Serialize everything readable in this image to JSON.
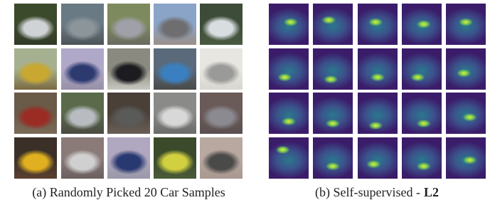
{
  "panels": [
    {
      "caption": "(a) Randomly Picked 20 Car Samples"
    },
    {
      "caption": "(b) Self-supervised -",
      "caption_bold": "L2"
    }
  ]
}
